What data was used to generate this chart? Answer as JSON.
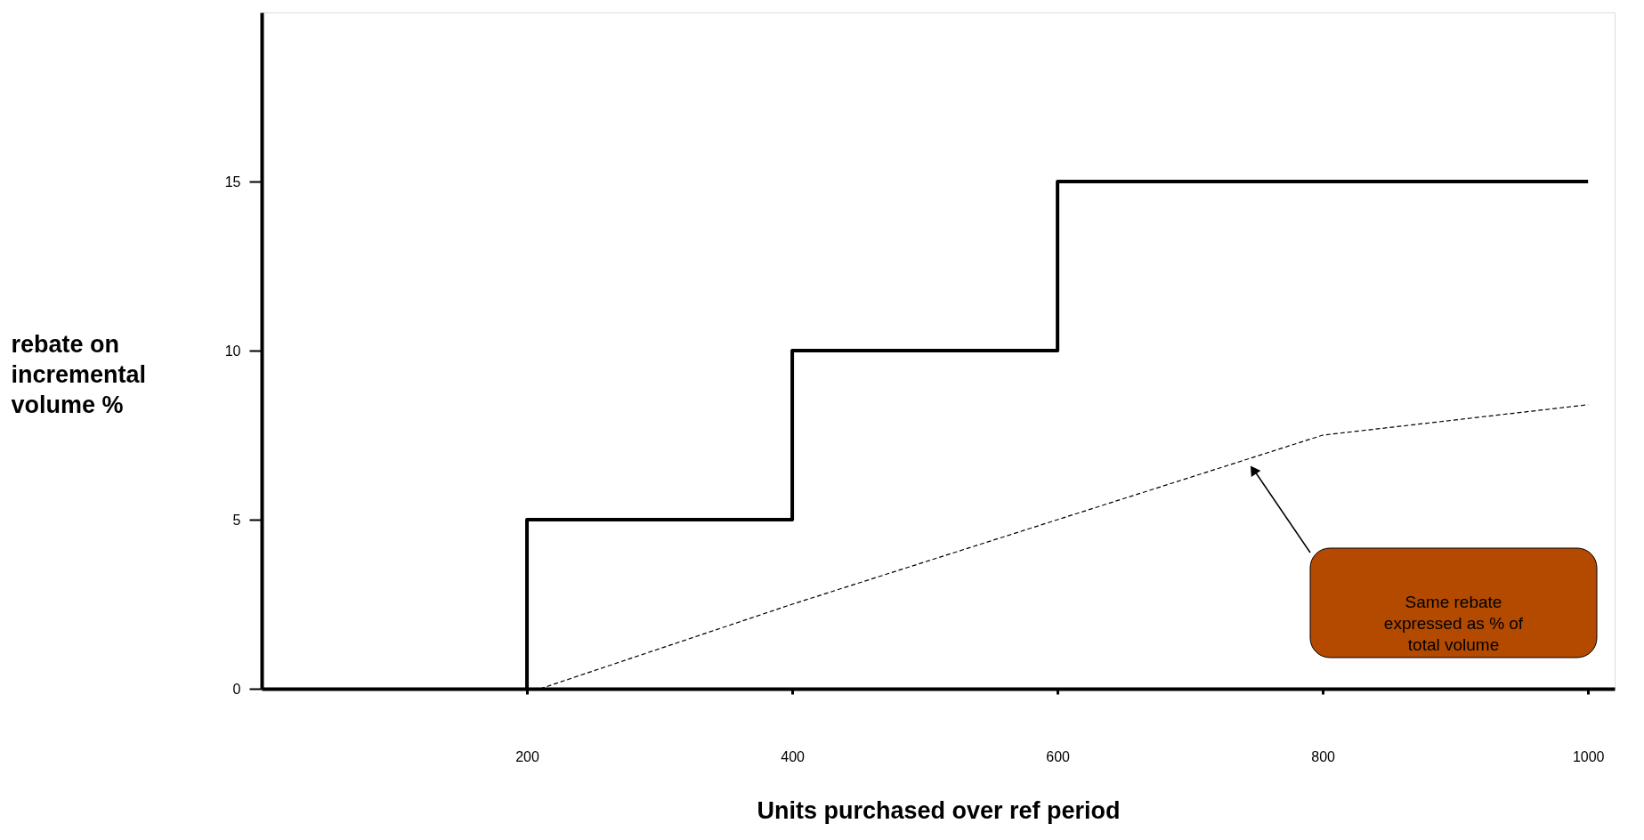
{
  "chart_data": {
    "type": "step",
    "xlabel": "Units purchased over ref period",
    "ylabel": "rebate on\nincremental\nvolume %",
    "xlim": [
      0,
      1020
    ],
    "xticks": [
      200,
      400,
      600,
      800,
      1000
    ],
    "ylim": [
      0,
      20
    ],
    "yticks": [
      0,
      5,
      10,
      15
    ],
    "grid": false,
    "series": [
      {
        "color": "#000000",
        "line_style": "solid",
        "x": [
          200,
          200,
          400,
          600,
          1000
        ],
        "values": [
          0,
          5,
          10,
          15,
          15
        ]
      },
      {
        "type": "line",
        "color": "#000000",
        "line_style": "dashed",
        "x": [
          210,
          400,
          600,
          800,
          1000
        ],
        "values": [
          0,
          2.5,
          5,
          7.5,
          8.4
        ]
      }
    ],
    "annotations": [
      "Same rebate\nexpressed as % of\ntotal volume"
    ]
  }
}
